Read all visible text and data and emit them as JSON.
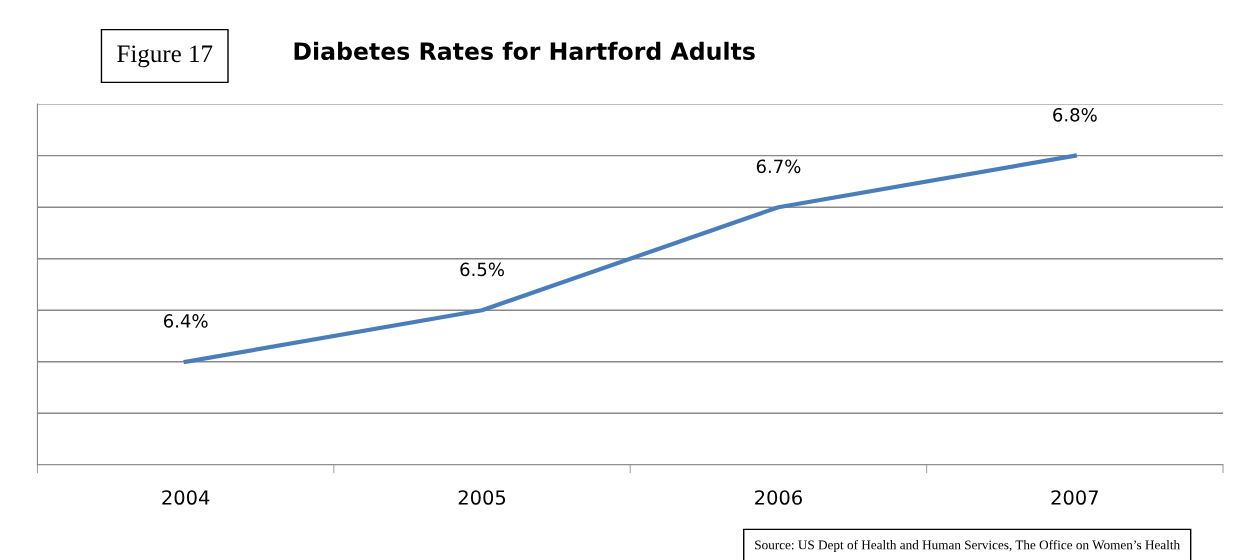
{
  "chart_data": {
    "type": "line",
    "title": "Diabetes Rates for Hartford Adults",
    "categories": [
      "2004",
      "2005",
      "2006",
      "2007"
    ],
    "series": [
      {
        "color": "#4a7ebb",
        "values": [
          6.4,
          6.5,
          6.7,
          6.8
        ],
        "value_labels": [
          "6.4%",
          "6.5%",
          "6.7%",
          "6.8%"
        ]
      }
    ],
    "ylim": [
      6.2,
      6.9
    ],
    "yticks": [
      {
        "value": 6.2,
        "label": null
      },
      {
        "value": 6.3,
        "label": null
      },
      {
        "value": 6.4,
        "label": null
      },
      {
        "value": 6.5,
        "label": null
      },
      {
        "value": 6.6,
        "label": null
      },
      {
        "value": 6.7,
        "label": null
      },
      {
        "value": 6.8,
        "label": null
      },
      {
        "value": 6.9,
        "label": null
      }
    ],
    "tick_labels": "x",
    "grid": "y",
    "legend": false,
    "marker": "none",
    "line_style": "solid",
    "annotations": [
      "Figure 17",
      "Source: US Dept of Health and Human Services, The Office on Women’s Health"
    ]
  }
}
